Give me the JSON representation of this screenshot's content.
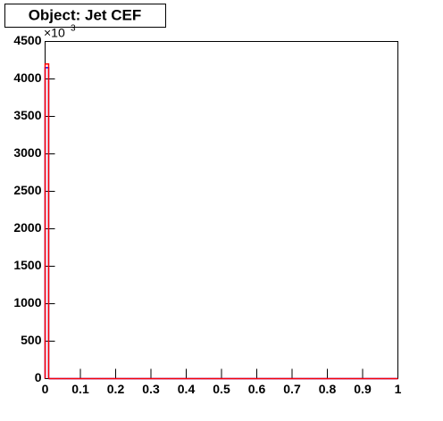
{
  "chart_data": {
    "type": "histogram",
    "title": "Object: Jet CEF",
    "y_multiplier": {
      "base": "×10",
      "exponent": "3"
    },
    "bins": [
      0,
      0.01,
      0.02,
      0.03,
      0.04,
      0.05,
      0.06,
      0.07,
      0.08,
      0.09,
      0.1,
      0.11,
      0.12,
      0.13,
      0.14,
      0.15,
      0.16,
      0.17,
      0.18,
      0.19,
      0.2,
      0.21,
      0.22,
      0.23,
      0.24,
      0.25,
      0.26,
      0.27,
      0.28,
      0.29,
      0.3,
      0.31,
      0.32,
      0.33,
      0.34,
      0.35,
      0.36,
      0.37,
      0.38,
      0.39,
      0.4,
      0.41,
      0.42,
      0.43,
      0.44,
      0.45,
      0.46,
      0.47,
      0.48,
      0.49,
      0.5,
      0.51,
      0.52,
      0.53,
      0.54,
      0.55,
      0.56,
      0.57,
      0.58,
      0.59,
      0.6,
      0.61,
      0.62,
      0.63,
      0.64,
      0.65,
      0.66,
      0.67,
      0.68,
      0.69,
      0.7,
      0.71,
      0.72,
      0.73,
      0.74,
      0.75,
      0.76,
      0.77,
      0.78,
      0.79,
      0.8,
      0.81,
      0.82,
      0.83,
      0.84,
      0.85,
      0.86,
      0.87,
      0.88,
      0.89,
      0.9,
      0.91,
      0.92,
      0.93,
      0.94,
      0.95,
      0.96,
      0.97,
      0.98,
      0.99,
      1
    ],
    "series": [
      {
        "color": "#0000ff",
        "values": [
          4150,
          0,
          0,
          0,
          0,
          0,
          0,
          0,
          0,
          0,
          0,
          0,
          0,
          0,
          0,
          0,
          0,
          0,
          0,
          0,
          0,
          0,
          0,
          0,
          0,
          0,
          0,
          0,
          0,
          0,
          0,
          0,
          0,
          0,
          0,
          0,
          0,
          0,
          0,
          0,
          0,
          0,
          0,
          0,
          0,
          0,
          0,
          0,
          0,
          0,
          0,
          0,
          0,
          0,
          0,
          0,
          0,
          0,
          0,
          0,
          0,
          0,
          0,
          0,
          0,
          0,
          0,
          0,
          0,
          0,
          0,
          0,
          0,
          0,
          0,
          0,
          0,
          0,
          0,
          0,
          0,
          0,
          0,
          0,
          0,
          0,
          0,
          0,
          0,
          0,
          0,
          0,
          0,
          0,
          0,
          0,
          0,
          0,
          0,
          0
        ]
      },
      {
        "color": "#ff0000",
        "values": [
          4200,
          0,
          0,
          0,
          0,
          0,
          0,
          0,
          0,
          0,
          0,
          0,
          0,
          0,
          0,
          0,
          0,
          0,
          0,
          0,
          0,
          0,
          0,
          0,
          0,
          0,
          0,
          0,
          0,
          0,
          0,
          0,
          0,
          0,
          0,
          0,
          0,
          0,
          0,
          0,
          0,
          0,
          0,
          0,
          0,
          0,
          0,
          0,
          0,
          0,
          0,
          0,
          0,
          0,
          0,
          0,
          0,
          0,
          0,
          0,
          0,
          0,
          0,
          0,
          0,
          0,
          0,
          0,
          0,
          0,
          0,
          0,
          0,
          0,
          0,
          0,
          0,
          0,
          0,
          0,
          0,
          0,
          0,
          0,
          0,
          0,
          0,
          0,
          0,
          0,
          0,
          0,
          0,
          0,
          0,
          0,
          0,
          0,
          0,
          0
        ]
      }
    ],
    "xlim": [
      0,
      1
    ],
    "xticks": [
      0,
      0.1,
      0.2,
      0.3,
      0.4,
      0.5,
      0.6,
      0.7,
      0.8,
      0.9,
      1
    ],
    "ylim": [
      0,
      4500
    ],
    "yticks": [
      0,
      500,
      1000,
      1500,
      2000,
      2500,
      3000,
      3500,
      4000,
      4500
    ]
  }
}
